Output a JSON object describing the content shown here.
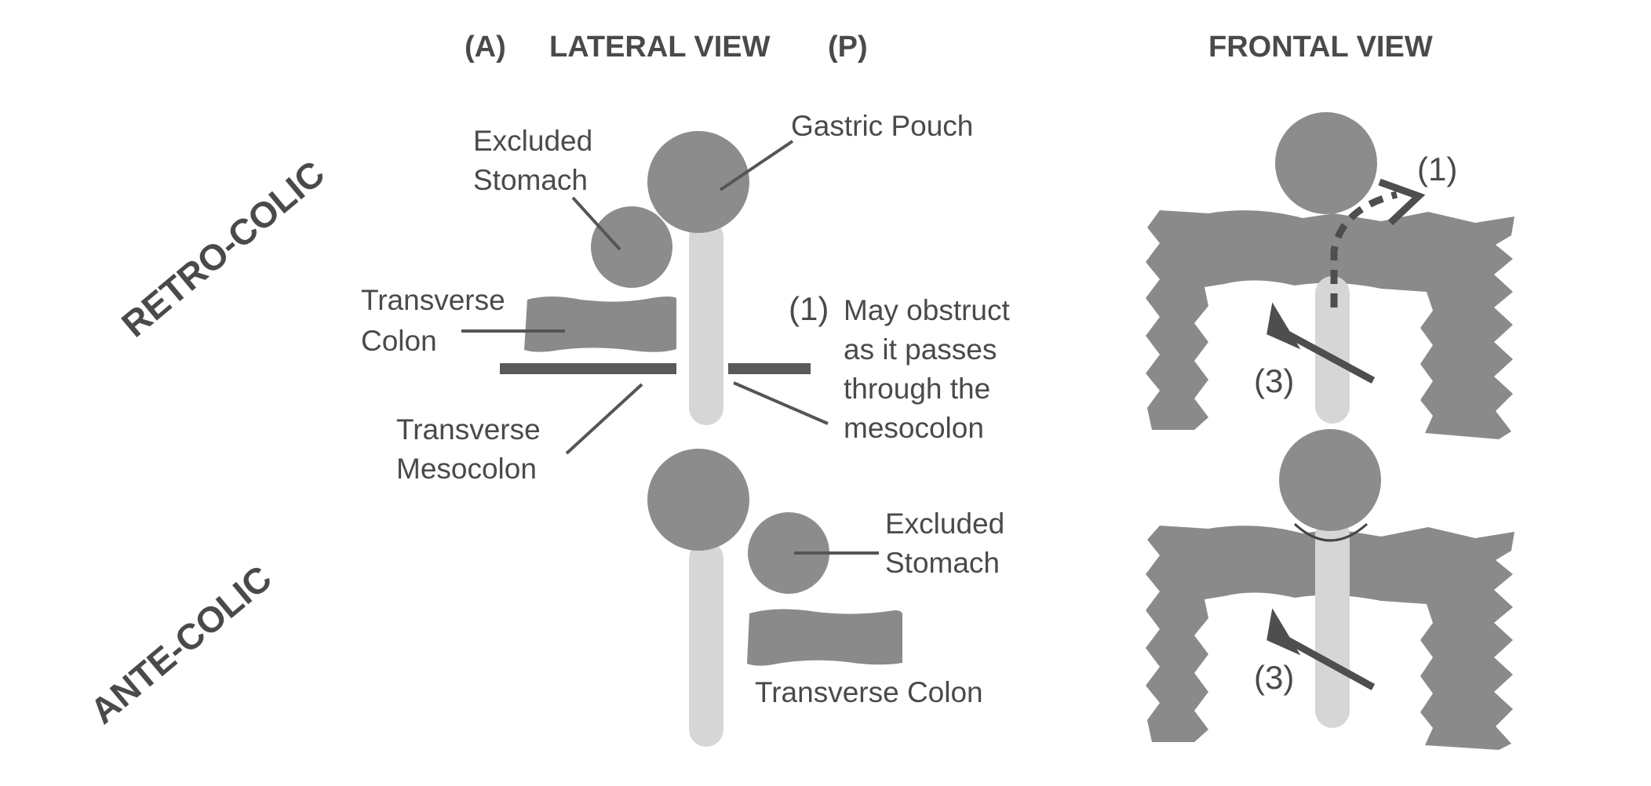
{
  "headers": {
    "anterior": "(A)",
    "lateral_view": "LATERAL VIEW",
    "posterior": "(P)",
    "frontal_view": "FRONTAL VIEW"
  },
  "sections": {
    "retro_colic": "RETRO-COLIC",
    "ante_colic": "ANTE-COLIC"
  },
  "labels": {
    "excluded_stomach_top_1": "Excluded",
    "excluded_stomach_top_2": "Stomach",
    "gastric_pouch": "Gastric Pouch",
    "transverse_colon_top_1": "Transverse",
    "transverse_colon_top_2": "Colon",
    "obstruct_number": "(1)",
    "obstruct_1": "May obstruct",
    "obstruct_2": "as it passes",
    "obstruct_3": "through the",
    "obstruct_4": "mesocolon",
    "mesocolon_1": "Transverse",
    "mesocolon_2": "Mesocolon",
    "excluded_stomach_bottom_1": "Excluded",
    "excluded_stomach_bottom_2": "Stomach",
    "transverse_colon_bottom": "Transverse Colon"
  },
  "frontal": {
    "retro_marker_1": "(1)",
    "retro_marker_3": "(3)",
    "ante_marker_3": "(3)"
  },
  "colors": {
    "organ": "#8c8c8c",
    "limb": "#d6d6d6",
    "text": "#4a4a4a"
  }
}
